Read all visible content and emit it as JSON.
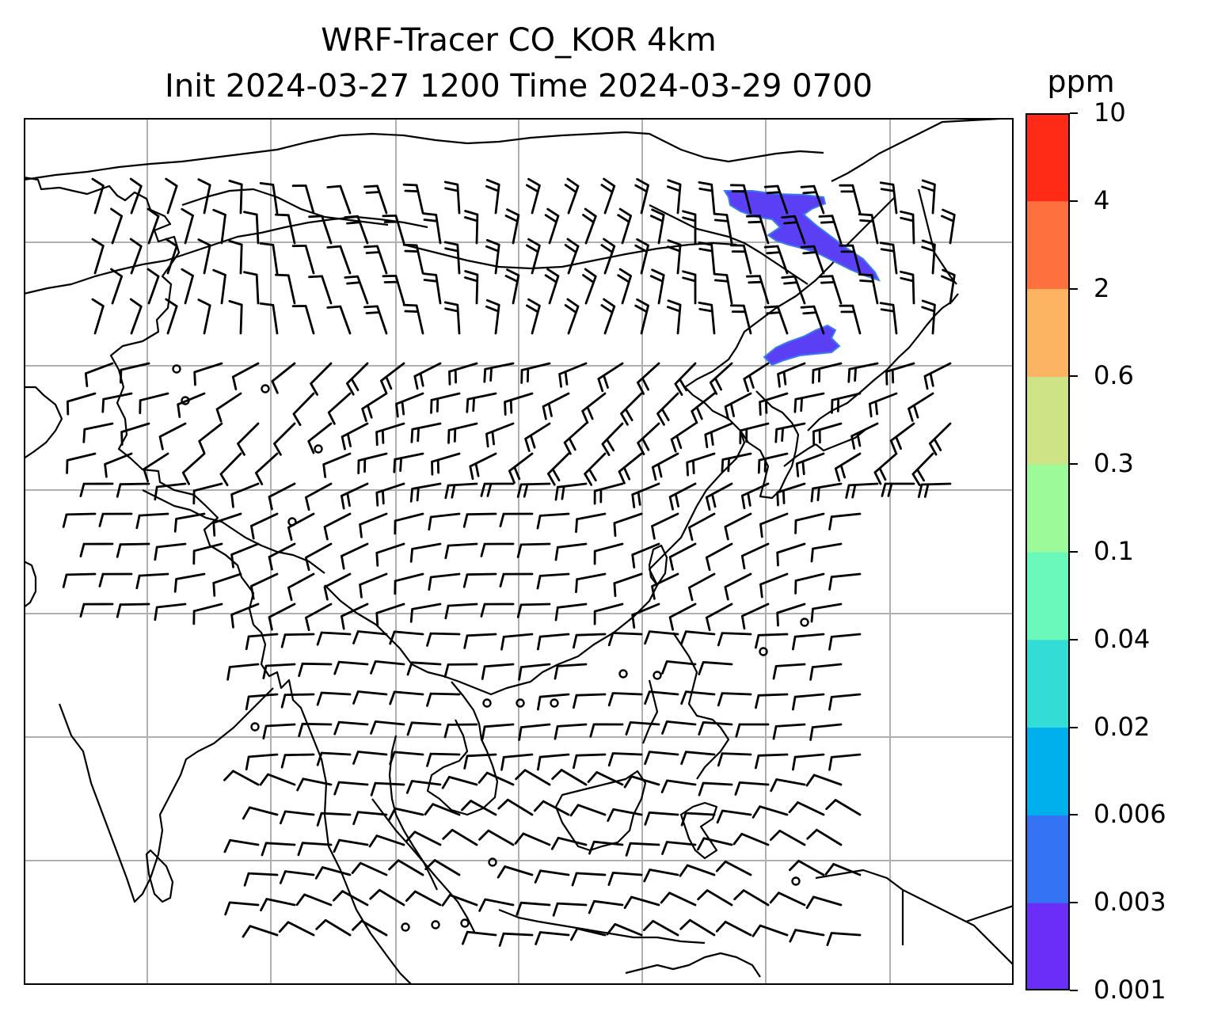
{
  "title": {
    "line1": "WRF-Tracer CO_KOR 4km",
    "line2": "Init 2024-03-27 1200 Time 2024-03-29 0700"
  },
  "colorbar": {
    "unit": "ppm",
    "ticks": [
      "0.001",
      "0.003",
      "0.006",
      "0.02",
      "0.04",
      "0.1",
      "0.3",
      "0.6",
      "2",
      "4",
      "10"
    ],
    "colors": [
      "#6a2ef8",
      "#3474f4",
      "#00b0ec",
      "#33dcd4",
      "#6bf9bb",
      "#9cfa98",
      "#cde385",
      "#fdb462",
      "#fe713e",
      "#ff2b17"
    ]
  },
  "map": {
    "gridline_color": "#b0b0b0",
    "coastline_color": "#000000",
    "tracer_color": "#5b3ff5",
    "tracer_edge_color": "#3a7cf0"
  }
}
